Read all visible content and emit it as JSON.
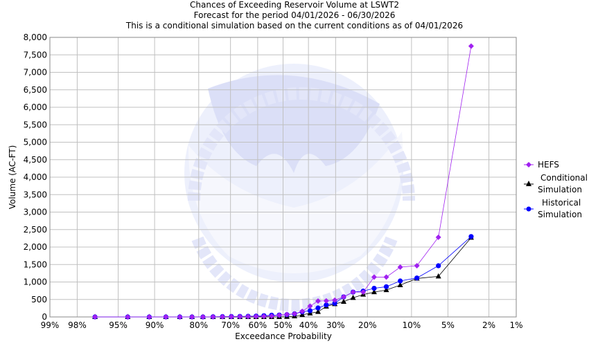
{
  "chart_data": {
    "type": "line",
    "title": [
      "Chances of Exceeding Reservoir Volume at LSWT2",
      "Forecast for the period 04/01/2026 - 06/30/2026",
      "This is a conditional simulation based on the current conditions as of 04/01/2026"
    ],
    "xlabel": "Exceedance Probability",
    "ylabel": "Volume (AC-FT)",
    "x_scale": "normal-probability",
    "x_ticks": [
      99,
      98,
      95,
      90,
      80,
      70,
      60,
      50,
      40,
      30,
      20,
      10,
      5,
      2,
      1
    ],
    "x_tick_labels": [
      "99%",
      "98%",
      "95%",
      "90%",
      "80%",
      "70%",
      "60%",
      "50%",
      "40%",
      "30%",
      "20%",
      "10%",
      "5%",
      "2%",
      "1%"
    ],
    "ylim": [
      0,
      8000
    ],
    "y_ticks": [
      0,
      500,
      1000,
      1500,
      2000,
      2500,
      3000,
      3500,
      4000,
      4500,
      5000,
      5500,
      6000,
      6500,
      7000,
      7500,
      8000
    ],
    "y_tick_labels": [
      "0",
      "500",
      "1,000",
      "1,500",
      "2,000",
      "2,500",
      "3,000",
      "3,500",
      "4,000",
      "4,500",
      "5,000",
      "5,500",
      "6,000",
      "6,500",
      "7,000",
      "7,500",
      "8,000"
    ],
    "grid": true,
    "legend_position": "right",
    "x": [
      96.97,
      93.94,
      90.91,
      87.88,
      84.85,
      81.82,
      78.79,
      75.76,
      72.73,
      69.7,
      66.67,
      63.64,
      60.61,
      57.58,
      54.55,
      51.52,
      48.48,
      45.45,
      42.42,
      39.39,
      36.36,
      33.33,
      30.3,
      27.27,
      24.24,
      21.21,
      18.18,
      15.15,
      12.12,
      9.09,
      6.06,
      3.03
    ],
    "series": [
      {
        "name": "HEFS",
        "color": "#a020f0",
        "marker": "diamond",
        "values": [
          0,
          0,
          0,
          0,
          0,
          0,
          0,
          2,
          5,
          8,
          10,
          12,
          15,
          18,
          25,
          50,
          72,
          92,
          160,
          310,
          455,
          460,
          480,
          575,
          710,
          710,
          1140,
          1140,
          1425,
          1465,
          2280,
          7750
        ]
      },
      {
        "name": "Conditional Simulation",
        "color": "#000000",
        "marker": "triangle",
        "values": [
          0,
          0,
          0,
          0,
          0,
          0,
          0,
          0,
          0,
          0,
          0,
          0,
          0,
          0,
          0,
          0,
          5,
          20,
          60,
          105,
          145,
          300,
          370,
          435,
          548,
          640,
          710,
          770,
          910,
          1100,
          1160,
          2270
        ]
      },
      {
        "name": "Historical Simulation",
        "color": "#0000ff",
        "marker": "circle",
        "values": [
          0,
          0,
          0,
          0,
          0,
          0,
          0,
          5,
          10,
          12,
          15,
          20,
          25,
          35,
          50,
          55,
          65,
          90,
          145,
          178,
          257,
          343,
          390,
          575,
          712,
          740,
          820,
          865,
          1030,
          1115,
          1465,
          2300
        ]
      }
    ]
  },
  "watermark": {
    "top_text": "NATIONAL OCEANIC AND ATMOSPHERIC ADMINISTRATION",
    "center_text": "NOAA",
    "bottom_text": "U.S. DEPARTMENT OF COMMERCE"
  }
}
